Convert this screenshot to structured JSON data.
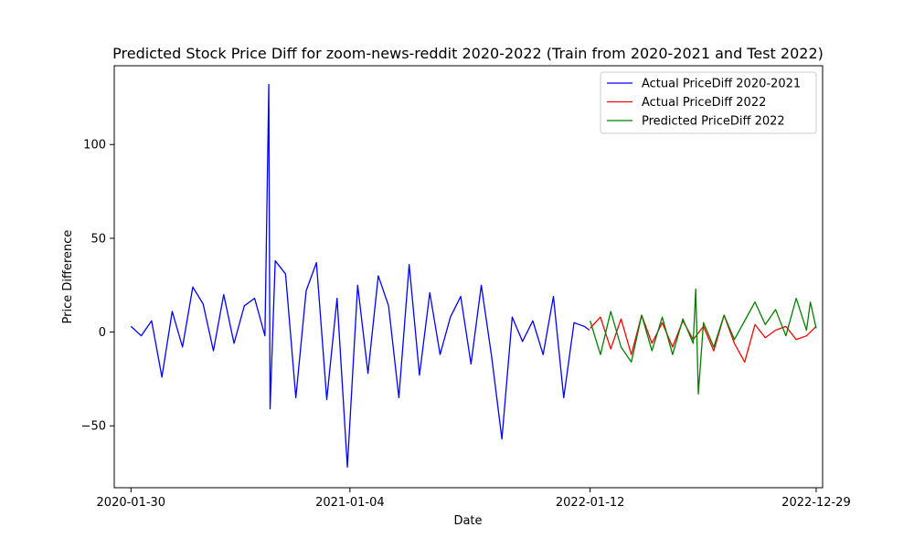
{
  "chart_data": {
    "type": "line",
    "title": "Predicted Stock Price Diff for zoom-news-reddit 2020-2022 (Train from 2020-2021 and Test 2022)",
    "xlabel": "Date",
    "ylabel": "Price Difference",
    "xlim": [
      "2020-01-04",
      "2023-01-08"
    ],
    "ylim": [
      -83,
      142
    ],
    "xticks": [
      "2020-01-30",
      "2021-01-04",
      "2022-01-12",
      "2022-12-29"
    ],
    "yticks": [
      -50,
      0,
      50,
      100
    ],
    "ytick_labels": [
      "−50",
      "0",
      "50",
      "100"
    ],
    "grid": false,
    "legend_position": "top-right",
    "series": [
      {
        "name": "Actual PriceDiff 2020-2021",
        "color": "#0000ff",
        "x": [
          "2020-01-30",
          "2020-02-15",
          "2020-03-02",
          "2020-03-18",
          "2020-04-03",
          "2020-04-19",
          "2020-05-05",
          "2020-05-21",
          "2020-06-06",
          "2020-06-22",
          "2020-07-08",
          "2020-07-24",
          "2020-08-09",
          "2020-08-25",
          "2020-08-31",
          "2020-09-02",
          "2020-09-10",
          "2020-09-26",
          "2020-10-12",
          "2020-10-28",
          "2020-11-13",
          "2020-11-29",
          "2020-12-15",
          "2020-12-31",
          "2021-01-16",
          "2021-02-01",
          "2021-02-17",
          "2021-03-05",
          "2021-03-21",
          "2021-04-06",
          "2021-04-22",
          "2021-05-08",
          "2021-05-24",
          "2021-06-09",
          "2021-06-25",
          "2021-07-11",
          "2021-07-27",
          "2021-08-12",
          "2021-08-28",
          "2021-09-13",
          "2021-09-29",
          "2021-10-15",
          "2021-10-31",
          "2021-11-16",
          "2021-12-02",
          "2021-12-18",
          "2022-01-03",
          "2022-01-11"
        ],
        "values": [
          3,
          -2,
          6,
          -24,
          11,
          -8,
          24,
          15,
          -10,
          20,
          -6,
          14,
          18,
          -2,
          132,
          -41,
          38,
          31,
          -35,
          22,
          37,
          -36,
          18,
          -72,
          25,
          -22,
          30,
          14,
          -35,
          36,
          -23,
          21,
          -12,
          8,
          19,
          -17,
          25,
          -13,
          -57,
          8,
          -5,
          6,
          -12,
          19,
          -35,
          5,
          3,
          1
        ]
      },
      {
        "name": "Actual PriceDiff 2022",
        "color": "#ff0000",
        "x": [
          "2022-01-12",
          "2022-01-28",
          "2022-02-13",
          "2022-03-01",
          "2022-03-17",
          "2022-04-02",
          "2022-04-18",
          "2022-05-04",
          "2022-05-20",
          "2022-06-05",
          "2022-06-21",
          "2022-07-07",
          "2022-07-23",
          "2022-08-08",
          "2022-08-24",
          "2022-09-09",
          "2022-09-25",
          "2022-10-11",
          "2022-10-27",
          "2022-11-12",
          "2022-11-28",
          "2022-12-14",
          "2022-12-29"
        ],
        "values": [
          2,
          8,
          -9,
          7,
          -12,
          9,
          -6,
          5,
          -8,
          6,
          -4,
          3,
          -10,
          9,
          -6,
          -16,
          4,
          -3,
          1,
          3,
          -4,
          -2,
          3
        ]
      },
      {
        "name": "Predicted PriceDiff 2022",
        "color": "#008000",
        "x": [
          "2022-01-12",
          "2022-01-28",
          "2022-02-13",
          "2022-03-01",
          "2022-03-17",
          "2022-04-02",
          "2022-04-18",
          "2022-05-04",
          "2022-05-20",
          "2022-06-05",
          "2022-06-21",
          "2022-06-25",
          "2022-06-29",
          "2022-07-07",
          "2022-07-23",
          "2022-08-08",
          "2022-08-24",
          "2022-09-09",
          "2022-09-25",
          "2022-10-11",
          "2022-10-27",
          "2022-11-12",
          "2022-11-28",
          "2022-12-14",
          "2022-12-20",
          "2022-12-29"
        ],
        "values": [
          6,
          -12,
          11,
          -8,
          -16,
          9,
          -10,
          8,
          -12,
          7,
          -6,
          23,
          -33,
          5,
          -8,
          9,
          -4,
          6,
          16,
          4,
          12,
          -2,
          18,
          1,
          16,
          2
        ]
      }
    ]
  }
}
